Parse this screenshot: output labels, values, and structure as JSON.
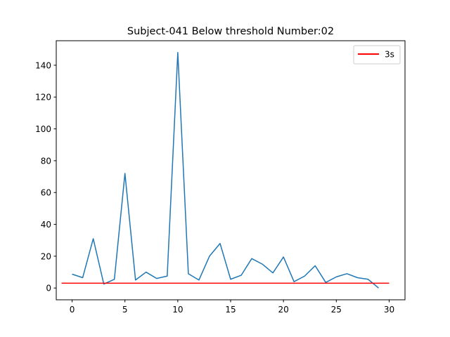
{
  "chart_data": {
    "type": "line",
    "title": "Subject-041   Below threshold Number:02",
    "xlabel": "",
    "ylabel": "",
    "xlim": [
      -1.5,
      31.5
    ],
    "ylim": [
      -7.4,
      155.4
    ],
    "xticks": [
      0,
      5,
      10,
      15,
      20,
      25,
      30
    ],
    "yticks": [
      0,
      20,
      40,
      60,
      80,
      100,
      120,
      140
    ],
    "grid": false,
    "legend_position": "top-right",
    "series": [
      {
        "color": "#1f77b4",
        "x": [
          0,
          1,
          2,
          3,
          4,
          5,
          6,
          7,
          8,
          9,
          10,
          11,
          12,
          13,
          14,
          15,
          16,
          17,
          18,
          19,
          20,
          21,
          22,
          23,
          24,
          25,
          26,
          27,
          28,
          29
        ],
        "values": [
          8.7,
          6.5,
          31,
          2.5,
          5.5,
          72,
          5,
          10,
          6,
          7.5,
          148,
          9,
          5,
          20,
          28,
          5.5,
          8,
          18.5,
          15,
          9.5,
          19.5,
          4,
          7.5,
          14,
          3.5,
          7,
          9,
          6.5,
          5.5,
          0
        ]
      },
      {
        "name": "3s",
        "color": "#ff0000",
        "x": [
          -1,
          30
        ],
        "values": [
          3,
          3
        ]
      }
    ]
  }
}
